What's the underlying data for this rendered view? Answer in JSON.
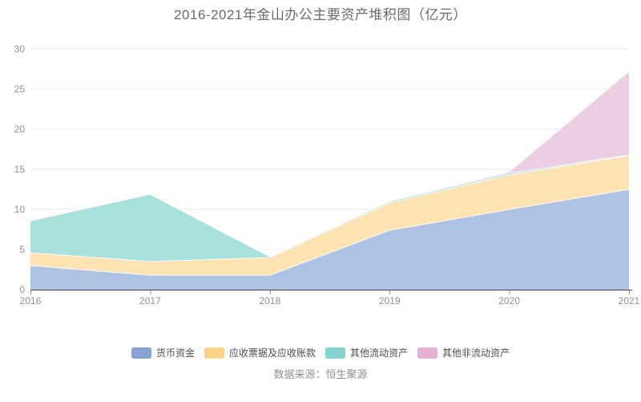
{
  "title": "2016-2021年金山办公主要资产堆积图（亿元）",
  "source": "数据来源：恒生聚源",
  "chart_data": {
    "type": "area",
    "stacked": true,
    "title": "2016-2021年金山办公主要资产堆积图（亿元）",
    "x": [
      "2016",
      "2017",
      "2018",
      "2019",
      "2020",
      "2021"
    ],
    "series": [
      {
        "name": "货币资金",
        "color": "#87A4D4",
        "fill": "#AEC3E3",
        "values": [
          3.0,
          1.8,
          1.8,
          7.4,
          10.0,
          12.5
        ]
      },
      {
        "name": "应收票据及应收账款",
        "color": "#FBD488",
        "fill": "#FDE3B1",
        "values": [
          1.6,
          1.7,
          2.2,
          3.4,
          4.3,
          4.2
        ]
      },
      {
        "name": "其他流动资产",
        "color": "#82D4CE",
        "fill": "#A9E1DD",
        "values": [
          4.0,
          8.4,
          0.1,
          0.2,
          0.2,
          0.1
        ]
      },
      {
        "name": "其他非流动资产",
        "color": "#E7AFD4",
        "fill": "#ECCEE4",
        "values": [
          0.0,
          0.0,
          0.0,
          0.0,
          0.2,
          10.4
        ]
      }
    ],
    "ylim": [
      0,
      30
    ],
    "y_tick_labels": [
      "0",
      "5",
      "10",
      "15",
      "20",
      "25",
      "30"
    ],
    "grid": true,
    "legend_position": "bottom",
    "axis_color": "#47494e",
    "grid_color": "#e6e9f2",
    "tick_label_color": "#8e9198"
  }
}
